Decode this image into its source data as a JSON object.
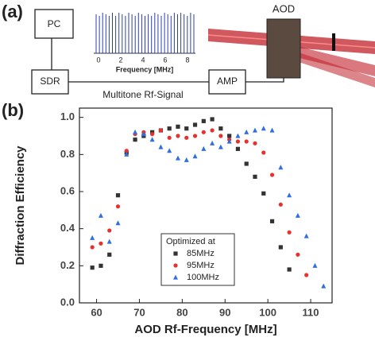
{
  "diagram": {
    "panel_a_label": "(a)",
    "panel_b_label": "(b)",
    "pc": "PC",
    "sdr": "SDR",
    "amp": "AMP",
    "aod": "AOD",
    "signal_label": "Multitone Rf-Signal",
    "inset_xlabel": "Frequency [MHz]",
    "inset_xticks": [
      "0",
      "2",
      "4",
      "6",
      "8"
    ]
  },
  "chart_data": {
    "type": "scatter",
    "xlabel": "AOD Rf-Frequency [MHz]",
    "ylabel": "Diffraction Efficiency",
    "xlim": [
      56,
      115
    ],
    "ylim": [
      0,
      1.05
    ],
    "xticks": [
      60,
      70,
      80,
      90,
      100,
      110
    ],
    "yticks": [
      {
        "value": 0,
        "label": "0.0"
      },
      0.2,
      0.4,
      0.6,
      0.8,
      {
        "value": 1,
        "label": "1.0"
      }
    ],
    "legend_title": "Optimized at",
    "legend_position": "lower center",
    "series": [
      {
        "name": "85MHz",
        "color": "#333333",
        "marker": "square",
        "x": [
          59,
          61,
          63,
          65,
          67,
          69,
          71,
          73,
          75,
          77,
          79,
          81,
          83,
          85,
          87,
          89,
          91,
          93,
          95,
          97,
          99,
          101,
          103,
          105
        ],
        "values": [
          0.19,
          0.2,
          0.26,
          0.58,
          0.81,
          0.88,
          0.9,
          0.92,
          0.93,
          0.94,
          0.95,
          0.94,
          0.96,
          0.98,
          0.99,
          0.94,
          0.9,
          0.83,
          0.75,
          0.68,
          0.59,
          0.44,
          0.3,
          0.18
        ]
      },
      {
        "name": "95MHz",
        "color": "#e8312f",
        "marker": "circle",
        "x": [
          59,
          61,
          63,
          65,
          67,
          69,
          71,
          73,
          75,
          77,
          79,
          81,
          83,
          85,
          87,
          89,
          91,
          93,
          95,
          97,
          99,
          101,
          103,
          105,
          107,
          109
        ],
        "values": [
          0.3,
          0.32,
          0.39,
          0.52,
          0.82,
          0.91,
          0.92,
          0.91,
          0.93,
          0.89,
          0.9,
          0.89,
          0.9,
          0.92,
          0.93,
          0.9,
          0.88,
          0.87,
          0.87,
          0.86,
          0.81,
          0.69,
          0.53,
          0.38,
          0.26,
          0.15
        ]
      },
      {
        "name": "100MHz",
        "color": "#2f6fe0",
        "marker": "triangle",
        "x": [
          59,
          61,
          63,
          65,
          67,
          69,
          71,
          73,
          75,
          77,
          79,
          81,
          83,
          85,
          87,
          89,
          91,
          93,
          95,
          97,
          99,
          101,
          103,
          105,
          107,
          109,
          111,
          113
        ],
        "values": [
          0.35,
          0.47,
          0.33,
          0.43,
          0.8,
          0.92,
          0.91,
          0.88,
          0.84,
          0.82,
          0.78,
          0.77,
          0.79,
          0.83,
          0.86,
          0.84,
          0.87,
          0.9,
          0.92,
          0.93,
          0.94,
          0.93,
          0.73,
          0.58,
          0.47,
          0.36,
          0.2,
          0.09
        ]
      }
    ]
  }
}
